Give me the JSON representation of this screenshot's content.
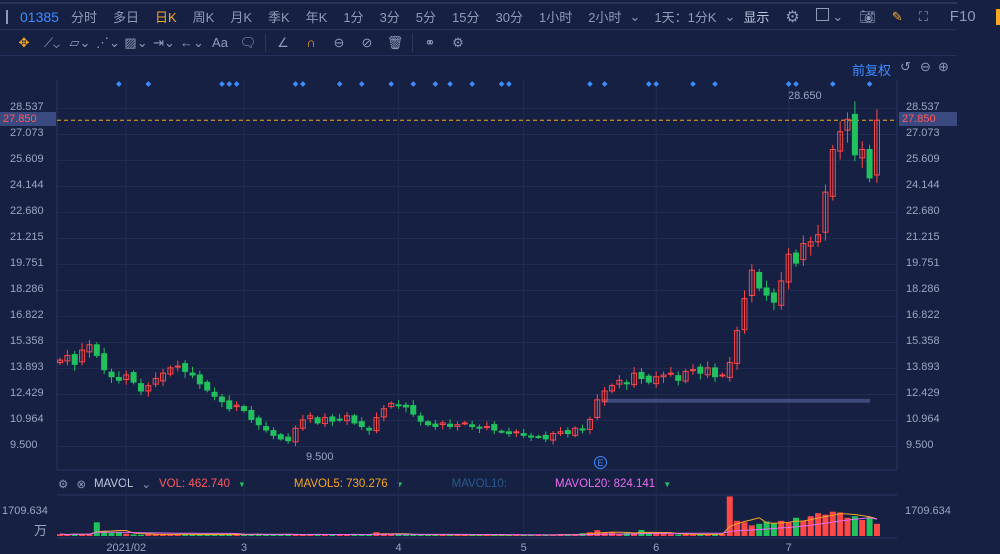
{
  "topbar": {
    "symbol": "01385",
    "periods": [
      "分时",
      "多日",
      "日K",
      "周K",
      "月K",
      "季K",
      "年K",
      "1分",
      "3分",
      "5分",
      "15分",
      "30分",
      "1小时",
      "2小时"
    ],
    "active": "日K",
    "range": "1天：1分K",
    "display": "显示",
    "f10": "F10"
  },
  "chart": {
    "adjust": "前复权",
    "price_labels": [
      "28.537",
      "27.073",
      "25.609",
      "24.144",
      "22.680",
      "21.215",
      "19.751",
      "18.286",
      "16.822",
      "15.358",
      "13.893",
      "12.429",
      "10.964",
      "9.500"
    ],
    "current_price": "27.850",
    "high_label": "28.650",
    "low_label": "9.500",
    "event_marker": "E",
    "colors": {
      "up": "#ff4747",
      "down": "#21c15e",
      "accent": "#f5a623",
      "link": "#3d8cff"
    },
    "closes": [
      14.34,
      14.6,
      14.1,
      14.9,
      15.2,
      14.6,
      13.8,
      13.4,
      13.2,
      13.5,
      13.1,
      12.6,
      12.9,
      13.3,
      13.6,
      13.9,
      14.0,
      13.7,
      13.5,
      13.0,
      12.65,
      12.3,
      12.0,
      11.6,
      11.8,
      11.5,
      11.0,
      10.7,
      10.4,
      10.1,
      9.9,
      9.8,
      10.5,
      10.97,
      11.2,
      10.8,
      11.1,
      10.9,
      11.0,
      11.2,
      10.8,
      10.6,
      10.4,
      11.1,
      11.6,
      11.9,
      11.8,
      11.7,
      11.3,
      10.9,
      10.7,
      10.6,
      10.8,
      10.6,
      10.7,
      10.8,
      10.6,
      10.5,
      10.6,
      10.4,
      10.3,
      10.2,
      10.3,
      10.1,
      10.0,
      10.0,
      9.9,
      10.2,
      10.3,
      10.2,
      10.5,
      10.4,
      11.0,
      12.1,
      12.6,
      12.9,
      13.2,
      13.0,
      13.6,
      13.3,
      13.1,
      13.4,
      13.5,
      13.6,
      13.2,
      13.7,
      13.8,
      13.6,
      13.9,
      13.4,
      13.5,
      14.2,
      16.0,
      17.8,
      19.4,
      18.4,
      18.0,
      17.6,
      18.8,
      20.3,
      19.8,
      20.9,
      21.0,
      21.4,
      23.8,
      26.2,
      27.2,
      27.9,
      25.9,
      26.2,
      24.6,
      27.85
    ],
    "volumes": [
      120,
      80,
      150,
      100,
      140,
      900,
      300,
      200,
      250,
      150,
      100,
      80,
      120,
      140,
      100,
      90,
      110,
      130,
      100,
      80,
      90,
      110,
      100,
      120,
      90,
      80,
      100,
      150,
      130,
      90,
      80,
      110,
      100,
      90,
      80,
      120,
      100,
      110,
      90,
      80,
      130,
      100,
      90,
      250,
      150,
      120,
      110,
      90,
      100,
      80,
      90,
      70,
      80,
      90,
      70,
      80,
      60,
      70,
      80,
      60,
      70,
      60,
      80,
      70,
      60,
      90,
      80,
      70,
      120,
      90,
      100,
      180,
      250,
      380,
      200,
      250,
      150,
      200,
      180,
      400,
      250,
      180,
      150,
      120,
      100,
      110,
      90,
      100,
      120,
      130,
      150,
      2600,
      1000,
      900,
      700,
      800,
      950,
      850,
      1000,
      900,
      1200,
      1000,
      1300,
      1500,
      1400,
      1600,
      1550,
      1200,
      1300,
      1050,
      1250,
      800
    ],
    "event_marker_indices": [
      8,
      12,
      22,
      23,
      24,
      32,
      33,
      38,
      41,
      45,
      48,
      51,
      53,
      56,
      60,
      61,
      72,
      74,
      80,
      81,
      86,
      89,
      99,
      100,
      105,
      110
    ],
    "support_line_price": 12.05,
    "x_labels": [
      {
        "label": "2021/02",
        "index": 9
      },
      {
        "label": "3",
        "index": 25
      },
      {
        "label": "4",
        "index": 46
      },
      {
        "label": "5",
        "index": 63
      },
      {
        "label": "6",
        "index": 81
      },
      {
        "label": "7",
        "index": 99
      }
    ]
  },
  "volume": {
    "indicator": "MAVOL",
    "vol": "VOL: 462.740",
    "ma5": "MAVOL5: 730.276",
    "ma10": "MAVOL10:",
    "ma20": "MAVOL20: 824.141",
    "scale": "1709.634",
    "unit": "万"
  }
}
